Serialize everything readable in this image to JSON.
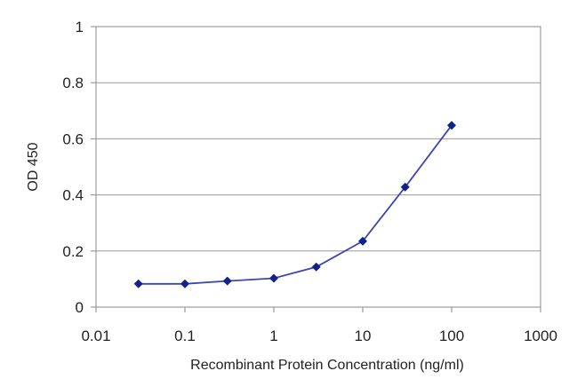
{
  "chart_data": {
    "type": "line",
    "title": "",
    "xlabel": "Recombinant Protein Concentration (ng/ml)",
    "ylabel": "OD 450",
    "x_scale": "log",
    "xlim": [
      0.01,
      1000
    ],
    "ylim": [
      0,
      1
    ],
    "x_ticks": [
      "0.01",
      "0.1",
      "1",
      "10",
      "100",
      "1000"
    ],
    "y_ticks": [
      "0",
      "0.2",
      "0.4",
      "0.6",
      "0.8",
      "1"
    ],
    "grid": "horizontal",
    "legend": "none",
    "series": [
      {
        "x": [
          0.03,
          0.1,
          0.3,
          1,
          3,
          10,
          30,
          100
        ],
        "y": [
          0.083,
          0.083,
          0.093,
          0.103,
          0.143,
          0.235,
          0.428,
          0.648
        ],
        "color": "#3b46b4",
        "marker_color": "#10208c"
      }
    ]
  }
}
